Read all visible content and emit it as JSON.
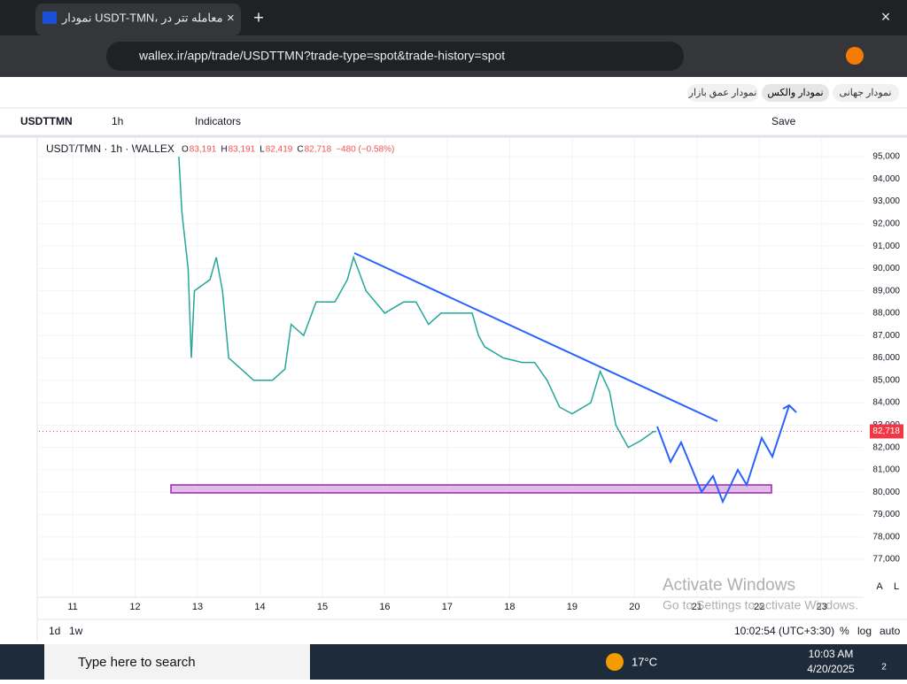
{
  "browser": {
    "tab_title": "نمودار USDT-TMN، معامله تتر در",
    "url": "wallex.ir/app/trade/USDTTMN?trade-type=spot&trade-history=spot"
  },
  "toolbar": {
    "tabs": [
      "نمودار جهانی",
      "نمودار والکس",
      "نمودار عمق بازار"
    ],
    "symbol": "USDTTMN",
    "interval": "1h",
    "indicators": "Indicators",
    "save": "Save"
  },
  "chart_data": {
    "type": "line",
    "title": "USDT/TMN · 1h · WALLEX",
    "ohlc": [
      {
        "key": "O",
        "value": "83,191"
      },
      {
        "key": "H",
        "value": "83,191"
      },
      {
        "key": "L",
        "value": "82,419"
      },
      {
        "key": "C",
        "value": "82,718"
      }
    ],
    "change": "−480 (−0.58%)",
    "x": [
      12.7,
      12.75,
      12.85,
      12.9,
      12.95,
      13.2,
      13.3,
      13.4,
      13.5,
      13.7,
      13.9,
      14.2,
      14.4,
      14.5,
      14.7,
      14.9,
      15.2,
      15.4,
      15.5,
      15.7,
      16.0,
      16.3,
      16.5,
      16.7,
      16.9,
      17.2,
      17.4,
      17.5,
      17.6,
      17.9,
      18.2,
      18.4,
      18.6,
      18.8,
      19.0,
      19.3,
      19.45,
      19.6,
      19.7,
      19.8,
      19.9,
      20.1,
      20.3,
      20.35
    ],
    "values": [
      95000,
      92500,
      90000,
      86000,
      89000,
      89500,
      90500,
      89000,
      86000,
      85500,
      85000,
      85000,
      85500,
      87500,
      87000,
      88500,
      88500,
      89500,
      90500,
      89000,
      88000,
      88500,
      88500,
      87500,
      88000,
      88000,
      88000,
      87000,
      86500,
      86000,
      85800,
      85800,
      85000,
      83800,
      83500,
      84000,
      85400,
      84500,
      83000,
      82500,
      82000,
      82300,
      82700,
      82718
    ],
    "color": "#26a69a",
    "xlim": [
      10.46,
      23.67
    ],
    "xticks": [
      11,
      12,
      13,
      14,
      15,
      16,
      17,
      18,
      19,
      20,
      21,
      22,
      23
    ],
    "ylim": [
      75300,
      95870
    ],
    "yticks": [
      {
        "value": 95000,
        "label": "95,000"
      },
      {
        "value": 94000,
        "label": "94,000"
      },
      {
        "value": 93000,
        "label": "93,000"
      },
      {
        "value": 92000,
        "label": "92,000"
      },
      {
        "value": 91000,
        "label": "91,000"
      },
      {
        "value": 90000,
        "label": "90,000"
      },
      {
        "value": 89000,
        "label": "89,000"
      },
      {
        "value": 88000,
        "label": "88,000"
      },
      {
        "value": 87000,
        "label": "87,000"
      },
      {
        "value": 86000,
        "label": "86,000"
      },
      {
        "value": 85000,
        "label": "85,000"
      },
      {
        "value": 84000,
        "label": "84,000"
      },
      {
        "value": 83000,
        "label": "83,000"
      },
      {
        "value": 82000,
        "label": "82,000"
      },
      {
        "value": 81000,
        "label": "81,000"
      },
      {
        "value": 80000,
        "label": "80,000"
      },
      {
        "value": 79000,
        "label": "79,000"
      },
      {
        "value": 78000,
        "label": "78,000"
      },
      {
        "value": 77000,
        "label": "77,000"
      }
    ],
    "last_price": {
      "value": 82718,
      "label": "82,718"
    },
    "grid": true
  },
  "bottom_bar": {
    "ranges": [
      "1d",
      "1w"
    ],
    "clock": "10:02:54 (UTC+3:30)",
    "options": [
      "%",
      "log",
      "auto"
    ],
    "scale_buttons": [
      "A",
      "L"
    ]
  },
  "watermark": {
    "title": "Activate Windows",
    "text": "Go to Settings to activate Windows."
  },
  "taskbar": {
    "search": "Type here to search",
    "weather": "17°C",
    "time": "10:03 AM",
    "date": "4/20/2025",
    "notifications": "2"
  }
}
